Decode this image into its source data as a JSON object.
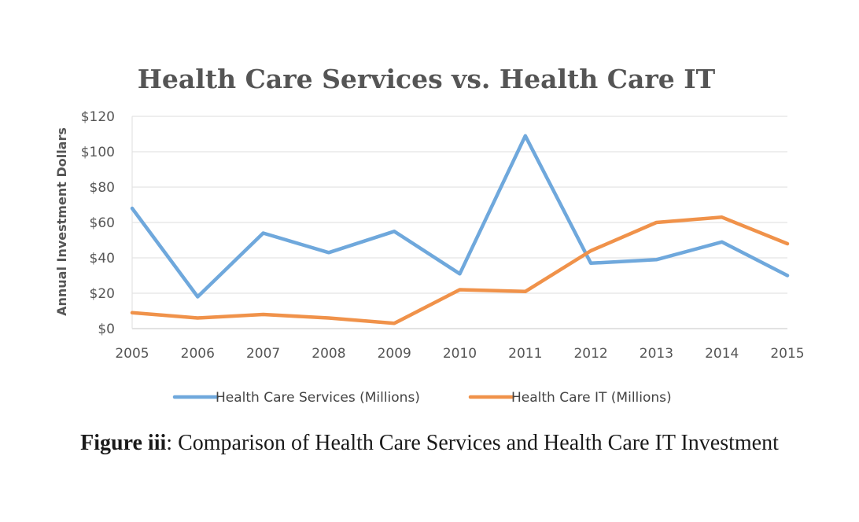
{
  "chart_data": {
    "type": "line",
    "title": "Health Care Services vs. Health Care IT",
    "xlabel": "",
    "ylabel": "Annual Investment Dollars",
    "categories": [
      "2005",
      "2006",
      "2007",
      "2008",
      "2009",
      "2010",
      "2011",
      "2012",
      "2013",
      "2014",
      "2015"
    ],
    "y_ticks": [
      "$0",
      "$20",
      "$40",
      "$60",
      "$80",
      "$100",
      "$120"
    ],
    "ylim": [
      0,
      120
    ],
    "grid": true,
    "legend_position": "bottom",
    "series": [
      {
        "name": "Health Care Services (Millions)",
        "color": "#6FA8DC",
        "values": [
          68,
          18,
          54,
          43,
          55,
          31,
          109,
          37,
          39,
          49,
          30
        ]
      },
      {
        "name": "Health Care IT (Millions)",
        "color": "#F0924A",
        "values": [
          9,
          6,
          8,
          6,
          3,
          22,
          21,
          44,
          60,
          63,
          48
        ]
      }
    ]
  },
  "caption": {
    "label": "Figure iii",
    "separator": ":",
    "text": " Comparison of Health Care Services and Health Care IT Investment"
  }
}
